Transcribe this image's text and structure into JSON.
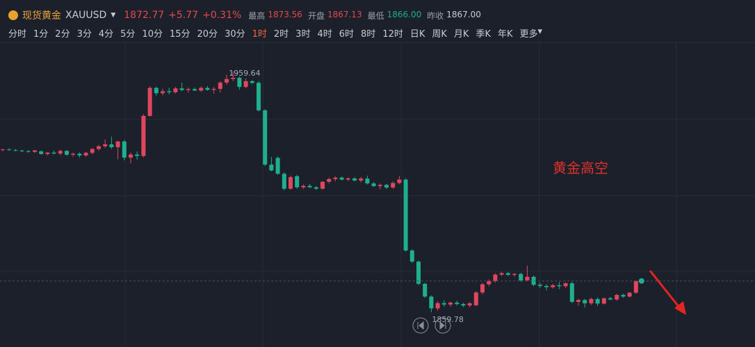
{
  "header": {
    "name": "现货黄金",
    "symbol": "XAUUSD",
    "price": "1872.77",
    "change": "+5.77",
    "change_pct": "+0.31%",
    "stats": [
      {
        "label": "最高",
        "value": "1873.56"
      },
      {
        "label": "开盘",
        "value": "1867.13"
      },
      {
        "label": "最低",
        "value": "1866.00"
      },
      {
        "label": "昨收",
        "value": "1867.00"
      }
    ]
  },
  "toolbar": {
    "intervals": [
      "分时",
      "1分",
      "2分",
      "3分",
      "4分",
      "5分",
      "10分",
      "15分",
      "20分",
      "30分",
      "1时",
      "2时",
      "3时",
      "4时",
      "6时",
      "8时",
      "12时",
      "日K",
      "周K",
      "月K",
      "季K",
      "年K"
    ],
    "active": "1时",
    "more": "更多"
  },
  "chart_data": {
    "type": "candlestick",
    "annotation": "黄金高空",
    "up_color": "#e0475e",
    "down_color": "#1fae8e",
    "ylim": [
      1845.4,
      1971.4
    ],
    "ohlc": [
      [
        1927.0,
        1927.6,
        1926.6,
        1927.3
      ],
      [
        1927.3,
        1927.8,
        1926.8,
        1927.0
      ],
      [
        1927.0,
        1927.5,
        1926.5,
        1926.8
      ],
      [
        1926.8,
        1927.2,
        1926.2,
        1926.6
      ],
      [
        1926.6,
        1927.0,
        1925.9,
        1926.3
      ],
      [
        1926.3,
        1927.1,
        1925.8,
        1926.9
      ],
      [
        1926.5,
        1926.9,
        1925.1,
        1925.4
      ],
      [
        1925.4,
        1926.2,
        1924.8,
        1926.0
      ],
      [
        1926.0,
        1926.8,
        1925.2,
        1925.6
      ],
      [
        1925.6,
        1927.1,
        1924.9,
        1926.7
      ],
      [
        1926.7,
        1927.0,
        1924.6,
        1925.1
      ],
      [
        1925.1,
        1926.0,
        1924.3,
        1925.5
      ],
      [
        1925.5,
        1926.1,
        1923.9,
        1924.8
      ],
      [
        1924.8,
        1926.3,
        1924.2,
        1925.9
      ],
      [
        1925.9,
        1927.8,
        1925.2,
        1927.5
      ],
      [
        1927.5,
        1929.2,
        1926.8,
        1928.6
      ],
      [
        1928.6,
        1931.5,
        1927.9,
        1929.4
      ],
      [
        1929.4,
        1932.6,
        1927.5,
        1928.2
      ],
      [
        1928.2,
        1930.9,
        1923.2,
        1930.6
      ],
      [
        1930.6,
        1931.2,
        1922.8,
        1923.9
      ],
      [
        1923.9,
        1926.0,
        1921.5,
        1925.2
      ],
      [
        1925.2,
        1926.5,
        1923.1,
        1924.6
      ],
      [
        1924.6,
        1941.9,
        1924.0,
        1941.2
      ],
      [
        1941.2,
        1953.5,
        1940.8,
        1952.8
      ],
      [
        1952.8,
        1953.4,
        1949.6,
        1950.6
      ],
      [
        1950.6,
        1952.5,
        1949.8,
        1951.4
      ],
      [
        1951.4,
        1952.9,
        1950.1,
        1951.0
      ],
      [
        1951.0,
        1953.2,
        1950.5,
        1952.6
      ],
      [
        1952.6,
        1955.0,
        1951.4,
        1951.9
      ],
      [
        1951.9,
        1953.0,
        1950.8,
        1952.3
      ],
      [
        1952.3,
        1953.1,
        1951.5,
        1951.7
      ],
      [
        1951.7,
        1953.4,
        1951.2,
        1952.8
      ],
      [
        1952.8,
        1953.6,
        1951.6,
        1952.0
      ],
      [
        1952.0,
        1953.2,
        1950.4,
        1952.4
      ],
      [
        1952.4,
        1955.6,
        1950.9,
        1955.0
      ],
      [
        1955.0,
        1958.3,
        1954.2,
        1956.5
      ],
      [
        1956.5,
        1959.64,
        1955.6,
        1957.0
      ],
      [
        1957.0,
        1957.5,
        1952.1,
        1953.2
      ],
      [
        1953.2,
        1956.7,
        1952.7,
        1955.6
      ],
      [
        1955.6,
        1956.1,
        1954.4,
        1954.9
      ],
      [
        1954.9,
        1955.6,
        1943.0,
        1943.5
      ],
      [
        1943.5,
        1944.0,
        1920.4,
        1921.0
      ],
      [
        1921.0,
        1924.2,
        1918.2,
        1918.6
      ],
      [
        1923.8,
        1924.4,
        1916.8,
        1917.2
      ],
      [
        1917.2,
        1917.8,
        1910.4,
        1911.0
      ],
      [
        1911.0,
        1916.5,
        1910.6,
        1915.8
      ],
      [
        1916.2,
        1916.8,
        1911.0,
        1911.6
      ],
      [
        1911.6,
        1912.8,
        1910.9,
        1912.2
      ],
      [
        1912.2,
        1913.0,
        1911.3,
        1911.6
      ],
      [
        1911.6,
        1912.1,
        1910.5,
        1911.0
      ],
      [
        1911.0,
        1914.1,
        1910.6,
        1913.9
      ],
      [
        1913.9,
        1915.6,
        1913.2,
        1915.0
      ],
      [
        1915.0,
        1916.2,
        1914.1,
        1915.6
      ],
      [
        1915.6,
        1916.1,
        1914.4,
        1914.8
      ],
      [
        1914.8,
        1915.7,
        1914.2,
        1915.3
      ],
      [
        1915.3,
        1915.8,
        1914.0,
        1914.4
      ],
      [
        1914.4,
        1915.9,
        1913.6,
        1915.2
      ],
      [
        1915.2,
        1916.4,
        1912.8,
        1913.2
      ],
      [
        1913.2,
        1913.9,
        1911.8,
        1912.1
      ],
      [
        1912.1,
        1913.2,
        1910.8,
        1912.6
      ],
      [
        1912.6,
        1913.0,
        1910.9,
        1911.5
      ],
      [
        1911.5,
        1914.0,
        1911.0,
        1913.4
      ],
      [
        1913.4,
        1916.2,
        1912.9,
        1914.8
      ],
      [
        1914.8,
        1915.3,
        1885.0,
        1885.4
      ],
      [
        1885.4,
        1886.0,
        1880.2,
        1880.8
      ],
      [
        1880.8,
        1881.2,
        1871.0,
        1871.6
      ],
      [
        1871.6,
        1872.0,
        1865.8,
        1866.3
      ],
      [
        1866.3,
        1866.8,
        1859.78,
        1861.4
      ],
      [
        1861.4,
        1864.4,
        1860.4,
        1863.6
      ],
      [
        1863.6,
        1864.8,
        1862.1,
        1863.0
      ],
      [
        1863.0,
        1864.2,
        1862.0,
        1863.8
      ],
      [
        1863.8,
        1864.6,
        1862.6,
        1863.2
      ],
      [
        1863.2,
        1863.7,
        1861.9,
        1862.6
      ],
      [
        1862.6,
        1864.1,
        1861.8,
        1863.5
      ],
      [
        1862.7,
        1868.5,
        1862.3,
        1868.0
      ],
      [
        1868.0,
        1872.0,
        1867.3,
        1871.4
      ],
      [
        1871.4,
        1873.4,
        1870.6,
        1872.8
      ],
      [
        1872.8,
        1876.0,
        1872.1,
        1875.4
      ],
      [
        1875.4,
        1876.6,
        1874.8,
        1876.0
      ],
      [
        1876.0,
        1876.5,
        1874.9,
        1875.3
      ],
      [
        1875.3,
        1876.1,
        1874.6,
        1875.7
      ],
      [
        1875.7,
        1876.2,
        1872.4,
        1873.0
      ],
      [
        1873.0,
        1879.1,
        1872.6,
        1874.5
      ],
      [
        1874.5,
        1875.0,
        1870.6,
        1871.2
      ],
      [
        1871.2,
        1872.0,
        1869.8,
        1870.7
      ],
      [
        1870.7,
        1871.4,
        1868.9,
        1870.2
      ],
      [
        1870.2,
        1871.6,
        1869.6,
        1871.0
      ],
      [
        1871.0,
        1872.3,
        1869.4,
        1870.6
      ],
      [
        1870.6,
        1872.2,
        1869.9,
        1871.8
      ],
      [
        1871.8,
        1872.4,
        1863.6,
        1864.1
      ],
      [
        1864.1,
        1865.4,
        1862.5,
        1864.9
      ],
      [
        1864.9,
        1865.3,
        1861.8,
        1863.5
      ],
      [
        1863.5,
        1865.8,
        1862.8,
        1865.3
      ],
      [
        1865.3,
        1865.9,
        1862.4,
        1863.4
      ],
      [
        1863.4,
        1865.9,
        1863.0,
        1865.6
      ],
      [
        1865.6,
        1866.2,
        1864.8,
        1865.1
      ],
      [
        1865.1,
        1867.4,
        1864.6,
        1867.0
      ],
      [
        1867.0,
        1867.5,
        1865.8,
        1866.3
      ],
      [
        1866.3,
        1868.2,
        1865.9,
        1867.9
      ],
      [
        1867.9,
        1872.9,
        1867.5,
        1872.77
      ]
    ]
  }
}
